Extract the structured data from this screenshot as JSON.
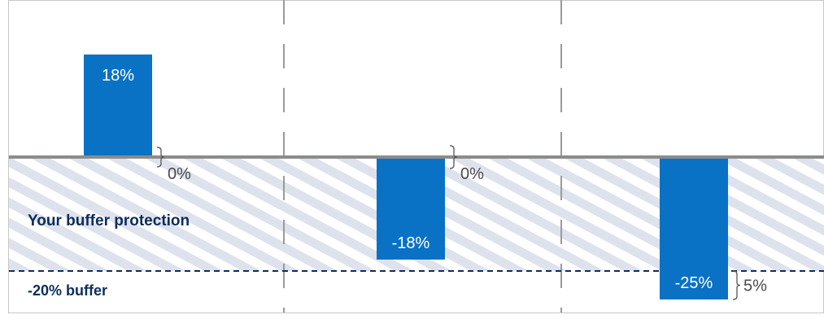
{
  "chart_data": {
    "type": "bar",
    "values": [
      18,
      -18,
      -25
    ],
    "data_labels": [
      "18%",
      "-18%",
      "-25%"
    ],
    "difference_labels": [
      "0%",
      "0%",
      "5%"
    ],
    "buffer": -20,
    "ylim": [
      -25,
      18
    ]
  },
  "annotations": {
    "protection_label": "Your buffer protection",
    "buffer_label": "-20% buffer"
  },
  "colors": {
    "bar": "#0a72c4",
    "stripe_a": "#dde2ec",
    "stripe_b": "#ffffff",
    "zero_line": "#8c8c8c",
    "buffer_line": "#0d2d5c",
    "annotation": "#0d2d5c"
  }
}
